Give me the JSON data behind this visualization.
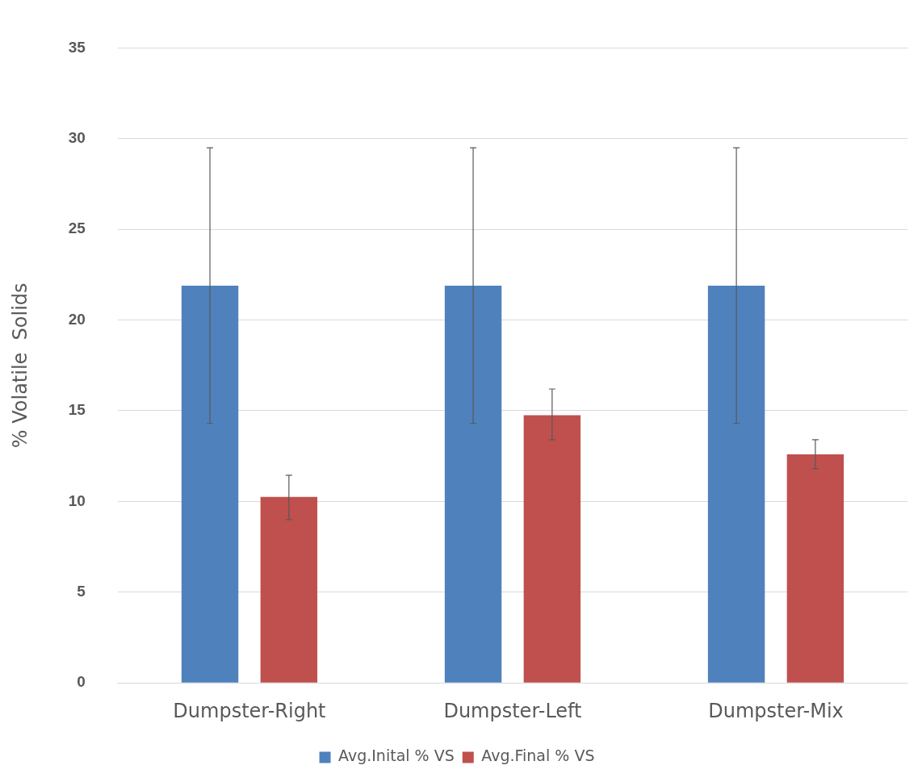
{
  "chart_data": {
    "type": "bar",
    "ylabel": "% Volatile  Solids",
    "categories": [
      "Dumpster-Right",
      "Dumpster-Left",
      "Dumpster-Mix"
    ],
    "series": [
      {
        "name": "Avg.Inital % VS",
        "color": "#4f81bd",
        "values": [
          21.9,
          21.9,
          21.9
        ],
        "errors": [
          [
            14.3,
            29.5
          ],
          [
            14.3,
            29.5
          ],
          [
            14.3,
            29.5
          ]
        ]
      },
      {
        "name": "Avg.Final % VS",
        "color": "#c0504d",
        "values": [
          10.25,
          14.75,
          12.6
        ],
        "errors": [
          [
            9.0,
            11.45
          ],
          [
            13.4,
            16.2
          ],
          [
            11.8,
            13.4
          ]
        ]
      }
    ],
    "ylim": [
      0,
      35
    ],
    "yticks": [
      0,
      5,
      10,
      15,
      20,
      25,
      30,
      35
    ],
    "grid": "y",
    "legend": "bottom"
  }
}
